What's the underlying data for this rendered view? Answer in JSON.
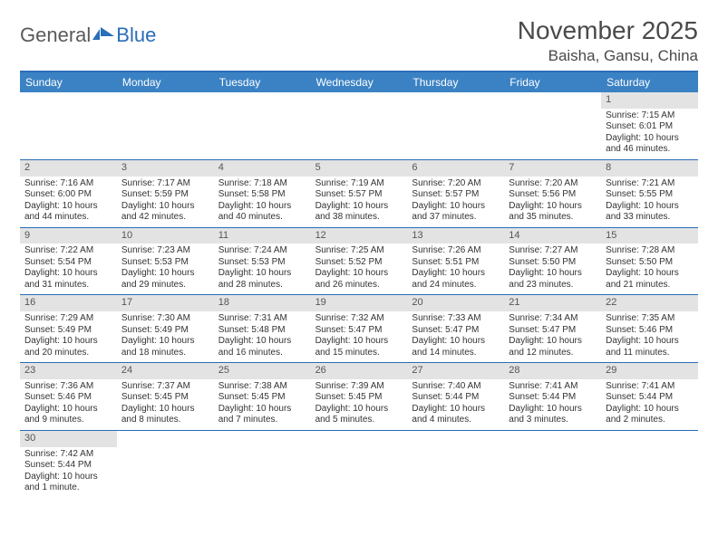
{
  "logo": {
    "text1": "General",
    "text2": "Blue"
  },
  "title": "November 2025",
  "location": "Baisha, Gansu, China",
  "colors": {
    "header_bar": "#3b82c4",
    "border": "#2a6db8",
    "daynum_bg": "#e3e3e3",
    "text": "#333333",
    "title_text": "#4a4a4a"
  },
  "day_headers": [
    "Sunday",
    "Monday",
    "Tuesday",
    "Wednesday",
    "Thursday",
    "Friday",
    "Saturday"
  ],
  "weeks": [
    [
      {
        "n": "",
        "lines": [
          "",
          "",
          "",
          ""
        ]
      },
      {
        "n": "",
        "lines": [
          "",
          "",
          "",
          ""
        ]
      },
      {
        "n": "",
        "lines": [
          "",
          "",
          "",
          ""
        ]
      },
      {
        "n": "",
        "lines": [
          "",
          "",
          "",
          ""
        ]
      },
      {
        "n": "",
        "lines": [
          "",
          "",
          "",
          ""
        ]
      },
      {
        "n": "",
        "lines": [
          "",
          "",
          "",
          ""
        ]
      },
      {
        "n": "1",
        "lines": [
          "Sunrise: 7:15 AM",
          "Sunset: 6:01 PM",
          "Daylight: 10 hours",
          "and 46 minutes."
        ]
      }
    ],
    [
      {
        "n": "2",
        "lines": [
          "Sunrise: 7:16 AM",
          "Sunset: 6:00 PM",
          "Daylight: 10 hours",
          "and 44 minutes."
        ]
      },
      {
        "n": "3",
        "lines": [
          "Sunrise: 7:17 AM",
          "Sunset: 5:59 PM",
          "Daylight: 10 hours",
          "and 42 minutes."
        ]
      },
      {
        "n": "4",
        "lines": [
          "Sunrise: 7:18 AM",
          "Sunset: 5:58 PM",
          "Daylight: 10 hours",
          "and 40 minutes."
        ]
      },
      {
        "n": "5",
        "lines": [
          "Sunrise: 7:19 AM",
          "Sunset: 5:57 PM",
          "Daylight: 10 hours",
          "and 38 minutes."
        ]
      },
      {
        "n": "6",
        "lines": [
          "Sunrise: 7:20 AM",
          "Sunset: 5:57 PM",
          "Daylight: 10 hours",
          "and 37 minutes."
        ]
      },
      {
        "n": "7",
        "lines": [
          "Sunrise: 7:20 AM",
          "Sunset: 5:56 PM",
          "Daylight: 10 hours",
          "and 35 minutes."
        ]
      },
      {
        "n": "8",
        "lines": [
          "Sunrise: 7:21 AM",
          "Sunset: 5:55 PM",
          "Daylight: 10 hours",
          "and 33 minutes."
        ]
      }
    ],
    [
      {
        "n": "9",
        "lines": [
          "Sunrise: 7:22 AM",
          "Sunset: 5:54 PM",
          "Daylight: 10 hours",
          "and 31 minutes."
        ]
      },
      {
        "n": "10",
        "lines": [
          "Sunrise: 7:23 AM",
          "Sunset: 5:53 PM",
          "Daylight: 10 hours",
          "and 29 minutes."
        ]
      },
      {
        "n": "11",
        "lines": [
          "Sunrise: 7:24 AM",
          "Sunset: 5:53 PM",
          "Daylight: 10 hours",
          "and 28 minutes."
        ]
      },
      {
        "n": "12",
        "lines": [
          "Sunrise: 7:25 AM",
          "Sunset: 5:52 PM",
          "Daylight: 10 hours",
          "and 26 minutes."
        ]
      },
      {
        "n": "13",
        "lines": [
          "Sunrise: 7:26 AM",
          "Sunset: 5:51 PM",
          "Daylight: 10 hours",
          "and 24 minutes."
        ]
      },
      {
        "n": "14",
        "lines": [
          "Sunrise: 7:27 AM",
          "Sunset: 5:50 PM",
          "Daylight: 10 hours",
          "and 23 minutes."
        ]
      },
      {
        "n": "15",
        "lines": [
          "Sunrise: 7:28 AM",
          "Sunset: 5:50 PM",
          "Daylight: 10 hours",
          "and 21 minutes."
        ]
      }
    ],
    [
      {
        "n": "16",
        "lines": [
          "Sunrise: 7:29 AM",
          "Sunset: 5:49 PM",
          "Daylight: 10 hours",
          "and 20 minutes."
        ]
      },
      {
        "n": "17",
        "lines": [
          "Sunrise: 7:30 AM",
          "Sunset: 5:49 PM",
          "Daylight: 10 hours",
          "and 18 minutes."
        ]
      },
      {
        "n": "18",
        "lines": [
          "Sunrise: 7:31 AM",
          "Sunset: 5:48 PM",
          "Daylight: 10 hours",
          "and 16 minutes."
        ]
      },
      {
        "n": "19",
        "lines": [
          "Sunrise: 7:32 AM",
          "Sunset: 5:47 PM",
          "Daylight: 10 hours",
          "and 15 minutes."
        ]
      },
      {
        "n": "20",
        "lines": [
          "Sunrise: 7:33 AM",
          "Sunset: 5:47 PM",
          "Daylight: 10 hours",
          "and 14 minutes."
        ]
      },
      {
        "n": "21",
        "lines": [
          "Sunrise: 7:34 AM",
          "Sunset: 5:47 PM",
          "Daylight: 10 hours",
          "and 12 minutes."
        ]
      },
      {
        "n": "22",
        "lines": [
          "Sunrise: 7:35 AM",
          "Sunset: 5:46 PM",
          "Daylight: 10 hours",
          "and 11 minutes."
        ]
      }
    ],
    [
      {
        "n": "23",
        "lines": [
          "Sunrise: 7:36 AM",
          "Sunset: 5:46 PM",
          "Daylight: 10 hours",
          "and 9 minutes."
        ]
      },
      {
        "n": "24",
        "lines": [
          "Sunrise: 7:37 AM",
          "Sunset: 5:45 PM",
          "Daylight: 10 hours",
          "and 8 minutes."
        ]
      },
      {
        "n": "25",
        "lines": [
          "Sunrise: 7:38 AM",
          "Sunset: 5:45 PM",
          "Daylight: 10 hours",
          "and 7 minutes."
        ]
      },
      {
        "n": "26",
        "lines": [
          "Sunrise: 7:39 AM",
          "Sunset: 5:45 PM",
          "Daylight: 10 hours",
          "and 5 minutes."
        ]
      },
      {
        "n": "27",
        "lines": [
          "Sunrise: 7:40 AM",
          "Sunset: 5:44 PM",
          "Daylight: 10 hours",
          "and 4 minutes."
        ]
      },
      {
        "n": "28",
        "lines": [
          "Sunrise: 7:41 AM",
          "Sunset: 5:44 PM",
          "Daylight: 10 hours",
          "and 3 minutes."
        ]
      },
      {
        "n": "29",
        "lines": [
          "Sunrise: 7:41 AM",
          "Sunset: 5:44 PM",
          "Daylight: 10 hours",
          "and 2 minutes."
        ]
      }
    ],
    [
      {
        "n": "30",
        "lines": [
          "Sunrise: 7:42 AM",
          "Sunset: 5:44 PM",
          "Daylight: 10 hours",
          "and 1 minute."
        ]
      },
      {
        "n": "",
        "lines": [
          "",
          "",
          "",
          ""
        ]
      },
      {
        "n": "",
        "lines": [
          "",
          "",
          "",
          ""
        ]
      },
      {
        "n": "",
        "lines": [
          "",
          "",
          "",
          ""
        ]
      },
      {
        "n": "",
        "lines": [
          "",
          "",
          "",
          ""
        ]
      },
      {
        "n": "",
        "lines": [
          "",
          "",
          "",
          ""
        ]
      },
      {
        "n": "",
        "lines": [
          "",
          "",
          "",
          ""
        ]
      }
    ]
  ]
}
